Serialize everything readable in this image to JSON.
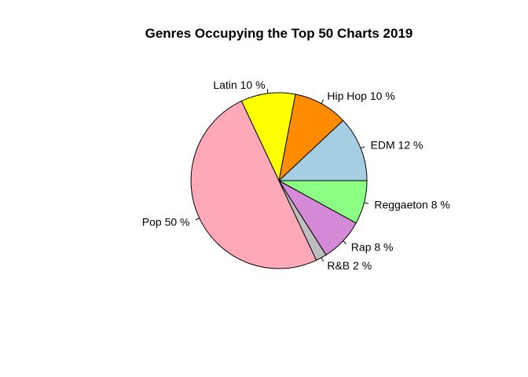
{
  "chart_data": {
    "type": "pie",
    "title": "Genres Occupying the Top 50 Charts 2019",
    "start_angle_deg": 0,
    "direction": "counterclockwise",
    "slices": [
      {
        "label": "EDM 12 %",
        "value": 12,
        "color": "#A6CEE3"
      },
      {
        "label": "Hip Hop 10 %",
        "value": 10,
        "color": "#FF8C00"
      },
      {
        "label": "Latin 10 %",
        "value": 10,
        "color": "#FFFF00"
      },
      {
        "label": "Pop 50 %",
        "value": 50,
        "color": "#FFA8B8"
      },
      {
        "label": "R&B 2 %",
        "value": 2,
        "color": "#BEBEBE"
      },
      {
        "label": "Rap 8 %",
        "value": 8,
        "color": "#D58AD8"
      },
      {
        "label": "Reggaeton 8 %",
        "value": 8,
        "color": "#8BFF83"
      }
    ]
  }
}
